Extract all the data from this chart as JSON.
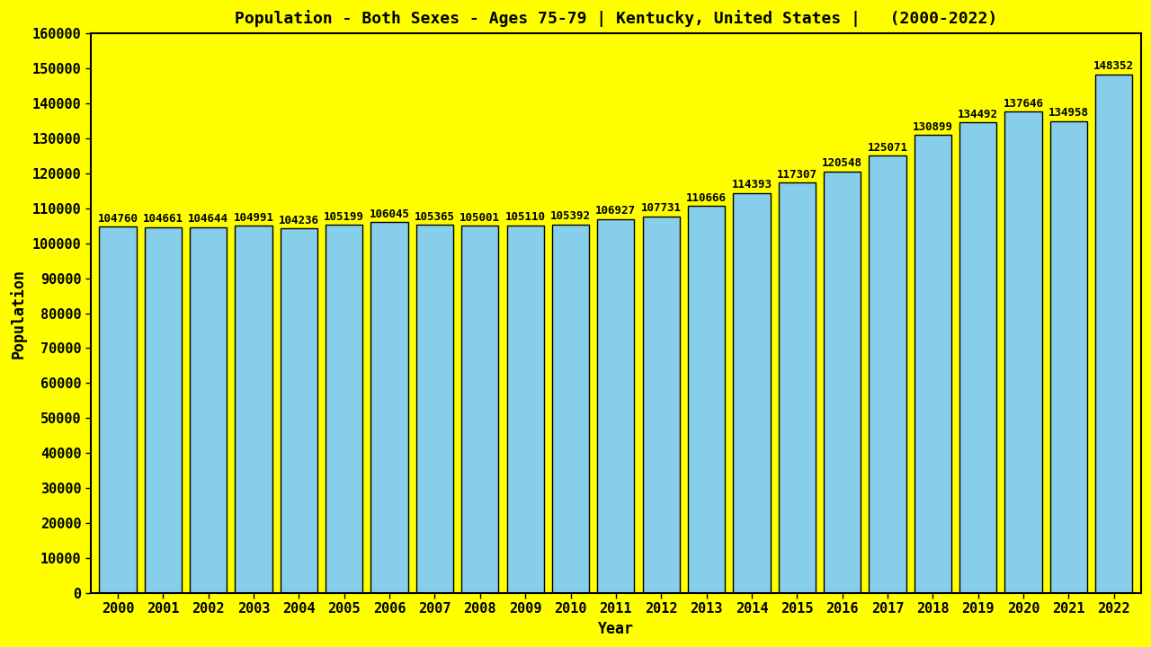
{
  "title": "Population - Both Sexes - Ages 75-79 | Kentucky, United States |   (2000-2022)",
  "xlabel": "Year",
  "ylabel": "Population",
  "background_color": "#FFFF00",
  "bar_color": "#87CEEB",
  "bar_edge_color": "#000000",
  "years": [
    2000,
    2001,
    2002,
    2003,
    2004,
    2005,
    2006,
    2007,
    2008,
    2009,
    2010,
    2011,
    2012,
    2013,
    2014,
    2015,
    2016,
    2017,
    2018,
    2019,
    2020,
    2021,
    2022
  ],
  "values": [
    104760,
    104661,
    104644,
    104991,
    104236,
    105199,
    106045,
    105365,
    105001,
    105110,
    105392,
    106927,
    107731,
    110666,
    114393,
    117307,
    120548,
    125071,
    130899,
    134492,
    137646,
    134958,
    148352
  ],
  "ylim": [
    0,
    160000
  ],
  "yticks": [
    0,
    10000,
    20000,
    30000,
    40000,
    50000,
    60000,
    70000,
    80000,
    90000,
    100000,
    110000,
    120000,
    130000,
    140000,
    150000,
    160000
  ],
  "title_fontsize": 13,
  "axis_label_fontsize": 12,
  "tick_fontsize": 11,
  "value_label_fontsize": 9,
  "bar_width": 0.82
}
